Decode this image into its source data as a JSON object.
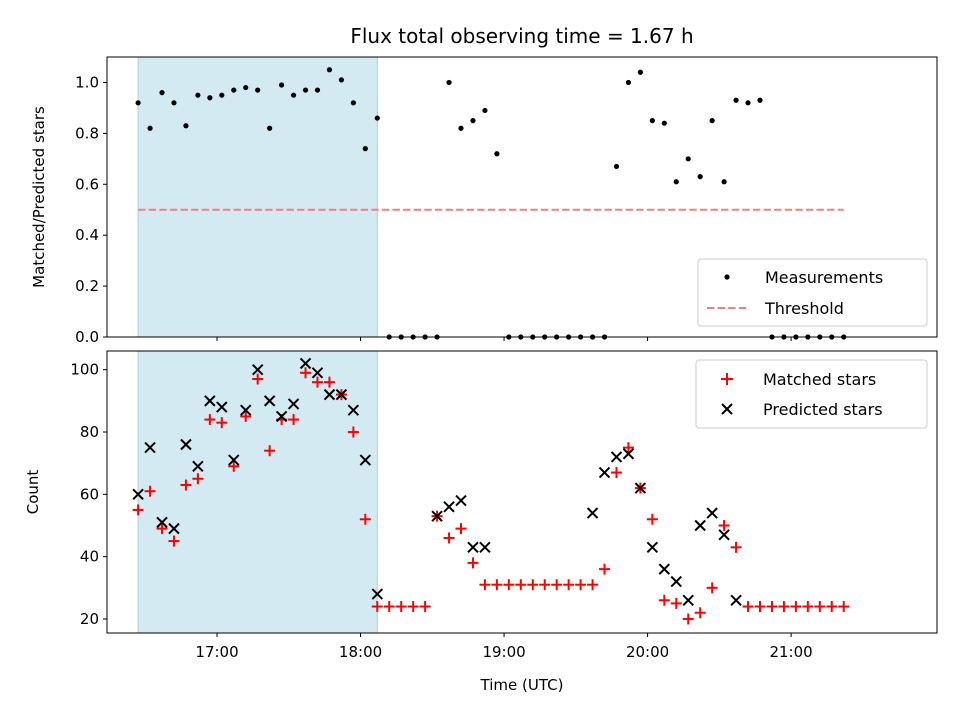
{
  "chart_data": [
    {
      "id": "top",
      "type": "scatter",
      "title": "Flux total observing time = 1.67 h",
      "xlabel": "",
      "ylabel": "Matched/Predicted stars",
      "xlim": [
        "16:14",
        "22:01"
      ],
      "ylim": [
        0,
        1.1
      ],
      "yticks": [
        "0.0",
        "0.2",
        "0.4",
        "0.6",
        "0.8",
        "1.0"
      ],
      "xticks": [
        "17:00",
        "18:00",
        "19:00",
        "20:00",
        "21:00"
      ],
      "tick_labels_visible": false,
      "shaded_region": {
        "x_start": "16:27",
        "x_end": "18:07",
        "color": "#d3eaf2"
      },
      "series": [
        {
          "name": "Measurements",
          "style": "dot",
          "color": "#000000",
          "x": [
            "16:27",
            "16:32",
            "16:37",
            "16:42",
            "16:47",
            "16:52",
            "16:57",
            "17:02",
            "17:07",
            "17:12",
            "17:17",
            "17:22",
            "17:27",
            "17:32",
            "17:37",
            "17:42",
            "17:47",
            "17:52",
            "17:57",
            "18:02",
            "18:07",
            "18:12",
            "18:17",
            "18:22",
            "18:27",
            "18:32",
            "18:37",
            "18:42",
            "18:47",
            "18:52",
            "18:57",
            "19:02",
            "19:07",
            "19:12",
            "19:17",
            "19:22",
            "19:27",
            "19:32",
            "19:37",
            "19:42",
            "19:47",
            "19:52",
            "19:57",
            "20:02",
            "20:07",
            "20:12",
            "20:17",
            "20:22",
            "20:27",
            "20:32",
            "20:37",
            "20:42",
            "20:47",
            "20:52",
            "20:57",
            "21:02",
            "21:07",
            "21:12",
            "21:17",
            "21:22"
          ],
          "values": [
            0.92,
            0.82,
            0.96,
            0.92,
            0.83,
            0.95,
            0.94,
            0.95,
            0.97,
            0.98,
            0.97,
            0.82,
            0.99,
            0.95,
            0.97,
            0.97,
            1.05,
            1.01,
            0.92,
            0.74,
            0.86,
            0,
            0,
            0,
            0,
            0,
            1.0,
            0.82,
            0.85,
            0.89,
            0.72,
            0,
            0,
            0,
            0,
            0,
            0,
            0,
            0,
            0,
            0.67,
            1.0,
            1.04,
            0.85,
            0.84,
            0.61,
            0.7,
            0.63,
            0.85,
            0.61,
            0.93,
            0.92,
            0.93,
            0,
            0,
            0,
            0,
            0,
            0,
            0
          ]
        },
        {
          "name": "Threshold",
          "style": "dashed-line",
          "color": "#f08080",
          "x": [
            "16:27",
            "21:22"
          ],
          "values": [
            0.5,
            0.5
          ]
        }
      ],
      "legend": {
        "position": "lower-right",
        "entries": [
          "Measurements",
          "Threshold"
        ]
      }
    },
    {
      "id": "bottom",
      "type": "scatter",
      "title": "",
      "xlabel": "Time (UTC)",
      "ylabel": "Count",
      "xlim": [
        "16:14",
        "22:01"
      ],
      "ylim": [
        15.5,
        106
      ],
      "yticks": [
        "20",
        "40",
        "60",
        "80",
        "100"
      ],
      "xticks": [
        "17:00",
        "18:00",
        "19:00",
        "20:00",
        "21:00"
      ],
      "shaded_region": {
        "x_start": "16:27",
        "x_end": "18:07",
        "color": "#d3eaf2"
      },
      "series": [
        {
          "name": "Matched stars",
          "style": "plus",
          "color": "#ff0000",
          "x": [
            "16:27",
            "16:32",
            "16:37",
            "16:42",
            "16:47",
            "16:52",
            "16:57",
            "17:02",
            "17:07",
            "17:12",
            "17:17",
            "17:22",
            "17:27",
            "17:32",
            "17:37",
            "17:42",
            "17:47",
            "17:52",
            "17:57",
            "18:02",
            "18:07",
            "18:12",
            "18:17",
            "18:22",
            "18:27",
            "18:32",
            "18:37",
            "18:42",
            "18:47",
            "18:52",
            "18:57",
            "19:02",
            "19:07",
            "19:12",
            "19:17",
            "19:22",
            "19:27",
            "19:32",
            "19:37",
            "19:42",
            "19:47",
            "19:52",
            "19:57",
            "20:02",
            "20:07",
            "20:12",
            "20:17",
            "20:22",
            "20:27",
            "20:32",
            "20:37",
            "20:42",
            "20:47",
            "20:52",
            "20:57",
            "21:02",
            "21:07",
            "21:12",
            "21:17",
            "21:22"
          ],
          "values": [
            55,
            61,
            49,
            45,
            63,
            65,
            84,
            83,
            69,
            85,
            97,
            74,
            84,
            84,
            99,
            96,
            96,
            92,
            80,
            52,
            24,
            24,
            24,
            24,
            24,
            53,
            46,
            49,
            38,
            31,
            31,
            31,
            31,
            31,
            31,
            31,
            31,
            31,
            31,
            36,
            67,
            75,
            62,
            52,
            26,
            25,
            20,
            22,
            30,
            50,
            43,
            24,
            24,
            24,
            24,
            24,
            24,
            24,
            24,
            24
          ]
        },
        {
          "name": "Predicted stars",
          "style": "cross",
          "color": "#000000",
          "x": [
            "16:27",
            "16:32",
            "16:37",
            "16:42",
            "16:47",
            "16:52",
            "16:57",
            "17:02",
            "17:07",
            "17:12",
            "17:17",
            "17:22",
            "17:27",
            "17:32",
            "17:37",
            "17:42",
            "17:47",
            "17:52",
            "17:57",
            "18:02",
            "18:07",
            "18:32",
            "18:37",
            "18:42",
            "18:47",
            "18:52",
            "19:37",
            "19:42",
            "19:47",
            "19:52",
            "19:57",
            "20:02",
            "20:07",
            "20:12",
            "20:17",
            "20:22",
            "20:27",
            "20:32",
            "20:37"
          ],
          "values": [
            60,
            75,
            51,
            49,
            76,
            69,
            90,
            88,
            71,
            87,
            100,
            90,
            85,
            89,
            102,
            99,
            92,
            92,
            87,
            71,
            28,
            53,
            56,
            58,
            43,
            43,
            54,
            67,
            72,
            73,
            62,
            43,
            36,
            32,
            26,
            50,
            54,
            47,
            26
          ]
        }
      ],
      "legend": {
        "position": "upper-right",
        "entries": [
          "Matched stars",
          "Predicted stars"
        ]
      }
    }
  ]
}
